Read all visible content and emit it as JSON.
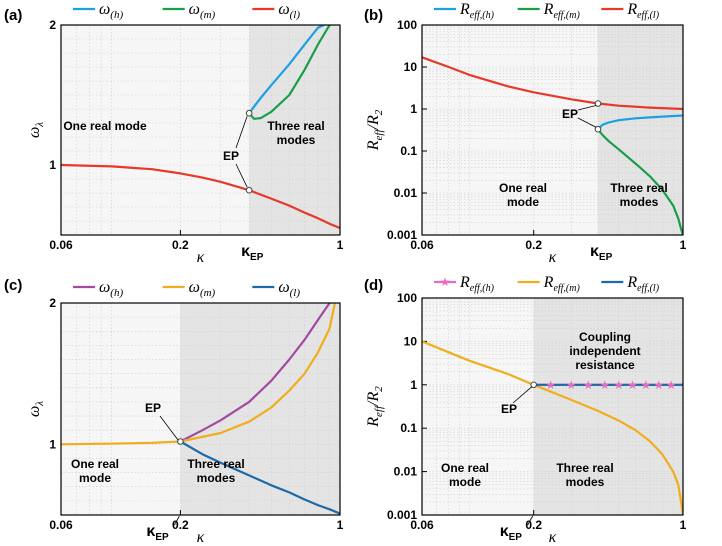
{
  "chart_data": [
    {
      "panel": "a",
      "panel_label": "(a)",
      "type": "line",
      "x_scale": "log",
      "xlim": [
        0.06,
        1
      ],
      "ylim": [
        0.5,
        2
      ],
      "x_ticks": [
        0.06,
        0.2,
        1
      ],
      "x_tick_labels": [
        "0.06",
        "0.2",
        "1"
      ],
      "y_ticks": [
        1,
        2
      ],
      "y_tick_labels": [
        "1",
        "2"
      ],
      "xlabel": "κ",
      "ylabel": "ω",
      "ylabel_sub": "λ",
      "grid": true,
      "legend_position": "top",
      "shaded_from": 0.4,
      "kappa_ep_value": 0.4,
      "kappa_ep_label": "κ",
      "kappa_ep_sub": "EP",
      "ep_label": "EP",
      "regions": [
        "One real mode",
        "Three real modes"
      ],
      "series": [
        {
          "name": "ω",
          "sub": "(h)",
          "color": "#1ba1e2",
          "x": [
            0.4,
            0.45,
            0.5,
            0.6,
            0.7,
            0.8,
            0.85
          ],
          "y": [
            1.37,
            1.48,
            1.57,
            1.72,
            1.86,
            1.98,
            2.0
          ]
        },
        {
          "name": "ω",
          "sub": "(m)",
          "color": "#1a9e4a",
          "x": [
            0.4,
            0.42,
            0.45,
            0.5,
            0.6,
            0.7,
            0.8,
            0.9
          ],
          "y": [
            1.37,
            1.33,
            1.335,
            1.38,
            1.5,
            1.68,
            1.86,
            2.0
          ]
        },
        {
          "name": "ω",
          "sub": "(l)",
          "color": "#e53a2a",
          "x": [
            0.06,
            0.1,
            0.15,
            0.2,
            0.25,
            0.3,
            0.4,
            0.5,
            0.6,
            0.7,
            0.8,
            0.9,
            1.0
          ],
          "y": [
            1.0,
            0.99,
            0.97,
            0.94,
            0.91,
            0.88,
            0.82,
            0.76,
            0.71,
            0.66,
            0.62,
            0.58,
            0.55
          ]
        }
      ],
      "ep_points": [
        {
          "x": 0.4,
          "y": 1.37
        },
        {
          "x": 0.4,
          "y": 0.82
        }
      ]
    },
    {
      "panel": "b",
      "panel_label": "(b)",
      "type": "line",
      "x_scale": "log",
      "y_scale": "log",
      "xlim": [
        0.06,
        1
      ],
      "ylim": [
        0.001,
        100
      ],
      "x_ticks": [
        0.06,
        0.2,
        1
      ],
      "x_tick_labels": [
        "0.06",
        "0.2",
        "1"
      ],
      "y_ticks": [
        0.001,
        0.01,
        0.1,
        1,
        10,
        100
      ],
      "y_tick_labels": [
        "0.001",
        "0.01",
        "0.1",
        "1",
        "10",
        "100"
      ],
      "xlabel": "κ",
      "ylabel": "R",
      "ylabel_sub": "eff",
      "ylabel_den": "R",
      "ylabel_den_sub": "2",
      "grid": true,
      "legend_position": "top",
      "shaded_from": 0.4,
      "kappa_ep_value": 0.4,
      "kappa_ep_label": "κ",
      "kappa_ep_sub": "EP",
      "ep_label": "EP",
      "regions": [
        "One real mode",
        "Three real modes"
      ],
      "series": [
        {
          "name": "R",
          "sub": "eff,(h)",
          "color": "#1ba1e2",
          "x": [
            0.4,
            0.42,
            0.45,
            0.5,
            0.6,
            0.7,
            0.8,
            0.9,
            1.0
          ],
          "y": [
            0.33,
            0.42,
            0.48,
            0.54,
            0.6,
            0.63,
            0.66,
            0.68,
            0.7
          ]
        },
        {
          "name": "R",
          "sub": "eff,(m)",
          "color": "#1a9e4a",
          "x": [
            0.4,
            0.42,
            0.45,
            0.5,
            0.6,
            0.7,
            0.8,
            0.9,
            0.95,
            0.98,
            1.0
          ],
          "y": [
            0.33,
            0.24,
            0.17,
            0.11,
            0.05,
            0.025,
            0.012,
            0.005,
            0.0025,
            0.0014,
            0.001
          ]
        },
        {
          "name": "R",
          "sub": "eff,(l)",
          "color": "#e53a2a",
          "x": [
            0.06,
            0.08,
            0.1,
            0.15,
            0.2,
            0.3,
            0.4,
            0.5,
            0.7,
            1.0
          ],
          "y": [
            17,
            10,
            6.5,
            3.5,
            2.5,
            1.7,
            1.35,
            1.2,
            1.08,
            1.0
          ]
        }
      ],
      "ep_points": [
        {
          "x": 0.4,
          "y": 1.35
        },
        {
          "x": 0.4,
          "y": 0.33
        }
      ]
    },
    {
      "panel": "c",
      "panel_label": "(c)",
      "type": "line",
      "x_scale": "log",
      "xlim": [
        0.06,
        1
      ],
      "ylim": [
        0.5,
        2
      ],
      "x_ticks": [
        0.06,
        0.2,
        1
      ],
      "x_tick_labels": [
        "0.06",
        "0.2",
        "1"
      ],
      "y_ticks": [
        1,
        2
      ],
      "y_tick_labels": [
        "1",
        "2"
      ],
      "xlabel": "κ",
      "ylabel": "ω",
      "ylabel_sub": "λ",
      "grid": true,
      "legend_position": "top",
      "shaded_from": 0.2,
      "kappa_ep_value": 0.2,
      "kappa_ep_label": "κ",
      "kappa_ep_sub": "EP",
      "ep_label": "EP",
      "regions": [
        "One real mode",
        "Three real modes"
      ],
      "series": [
        {
          "name": "ω",
          "sub": "(h)",
          "color": "#a24aa0",
          "x": [
            0.2,
            0.25,
            0.3,
            0.4,
            0.5,
            0.6,
            0.7,
            0.8,
            0.9
          ],
          "y": [
            1.02,
            1.1,
            1.17,
            1.3,
            1.45,
            1.6,
            1.74,
            1.88,
            2.0
          ]
        },
        {
          "name": "ω",
          "sub": "(m)",
          "color": "#f0ae1e",
          "x": [
            0.06,
            0.1,
            0.15,
            0.2,
            0.3,
            0.4,
            0.5,
            0.6,
            0.7,
            0.8,
            0.9,
            0.95
          ],
          "y": [
            1.0,
            1.005,
            1.01,
            1.02,
            1.08,
            1.16,
            1.26,
            1.38,
            1.5,
            1.65,
            1.82,
            2.0
          ]
        },
        {
          "name": "ω",
          "sub": "(l)",
          "color": "#1d6aa8",
          "x": [
            0.2,
            0.25,
            0.3,
            0.4,
            0.5,
            0.6,
            0.7,
            0.8,
            0.9,
            1.0
          ],
          "y": [
            1.02,
            0.93,
            0.87,
            0.78,
            0.71,
            0.66,
            0.61,
            0.57,
            0.54,
            0.51
          ]
        }
      ],
      "ep_points": [
        {
          "x": 0.2,
          "y": 1.02
        }
      ]
    },
    {
      "panel": "d",
      "panel_label": "(d)",
      "type": "line",
      "x_scale": "log",
      "y_scale": "log",
      "xlim": [
        0.06,
        1
      ],
      "ylim": [
        0.001,
        100
      ],
      "x_ticks": [
        0.06,
        0.2,
        1
      ],
      "x_tick_labels": [
        "0.06",
        "0.2",
        "1"
      ],
      "y_ticks": [
        0.001,
        0.01,
        0.1,
        1,
        10,
        100
      ],
      "y_tick_labels": [
        "0.001",
        "0.01",
        "0.1",
        "1",
        "10",
        "100"
      ],
      "xlabel": "κ",
      "ylabel": "R",
      "ylabel_sub": "eff",
      "ylabel_den": "R",
      "ylabel_den_sub": "2",
      "grid": true,
      "legend_position": "top",
      "shaded_from": 0.2,
      "kappa_ep_value": 0.2,
      "kappa_ep_label": "κ",
      "kappa_ep_sub": "EP",
      "ep_label": "EP",
      "regions": [
        "One real mode",
        "Three real modes"
      ],
      "annotation": [
        "Coupling",
        "independent",
        "resistance"
      ],
      "series": [
        {
          "name": "R",
          "sub": "eff,(h)",
          "color": "#e86bc2",
          "marker": "star",
          "x": [
            0.2,
            0.25,
            0.3,
            0.35,
            0.4,
            0.5,
            0.6,
            0.7,
            0.8,
            0.9,
            1.0
          ],
          "y": [
            1,
            1,
            1,
            1,
            1,
            1,
            1,
            1,
            1,
            1,
            1
          ],
          "marker_x": [
            0.24,
            0.3,
            0.36,
            0.43,
            0.5,
            0.58,
            0.67,
            0.77,
            0.88
          ]
        },
        {
          "name": "R",
          "sub": "eff,(m)",
          "color": "#f0ae1e",
          "x": [
            0.06,
            0.08,
            0.1,
            0.15,
            0.2,
            0.3,
            0.4,
            0.5,
            0.6,
            0.7,
            0.8,
            0.9,
            0.95,
            0.98,
            1.0
          ],
          "y": [
            10,
            5.6,
            3.6,
            1.8,
            1.0,
            0.45,
            0.25,
            0.15,
            0.09,
            0.05,
            0.025,
            0.01,
            0.005,
            0.002,
            0.001
          ]
        },
        {
          "name": "R",
          "sub": "eff,(l)",
          "color": "#1d6aa8",
          "x": [
            0.2,
            0.3,
            0.4,
            0.5,
            0.6,
            0.7,
            0.8,
            0.9,
            1.0
          ],
          "y": [
            1,
            1,
            1,
            1,
            1,
            1,
            1,
            1,
            1
          ]
        }
      ],
      "ep_points": [
        {
          "x": 0.2,
          "y": 1.0
        }
      ]
    }
  ]
}
